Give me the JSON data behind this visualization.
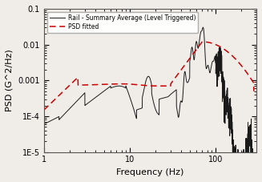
{
  "xlabel": "Frequency (Hz)",
  "ylabel": "PSD (G^2/Hz)",
  "xlim": [
    1,
    300
  ],
  "ylim": [
    1e-05,
    0.1
  ],
  "legend_rail": "Rail - Summary Average (Level Triggered)",
  "legend_psd": "PSD fitted",
  "rail_color": "#1a1a1a",
  "psd_color": "#cc0000",
  "background_color": "#f0ede8"
}
